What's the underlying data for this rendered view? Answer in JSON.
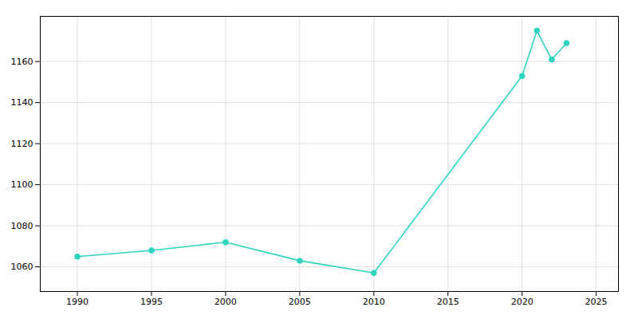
{
  "chart_data": {
    "type": "line",
    "x": [
      1990,
      1995,
      2000,
      2005,
      2010,
      2020,
      2021,
      2022,
      2023
    ],
    "values": [
      1065,
      1068,
      1072,
      1063,
      1057,
      1153,
      1175,
      1161,
      1169
    ],
    "color": "#2dd4bf",
    "marker": "circle",
    "xlim": [
      1987.5,
      2026.5
    ],
    "ylim": [
      1048,
      1182
    ],
    "xticks": [
      1990,
      1995,
      2000,
      2005,
      2010,
      2015,
      2020,
      2025
    ],
    "yticks": [
      1060,
      1080,
      1100,
      1120,
      1140,
      1160
    ],
    "grid": true
  }
}
